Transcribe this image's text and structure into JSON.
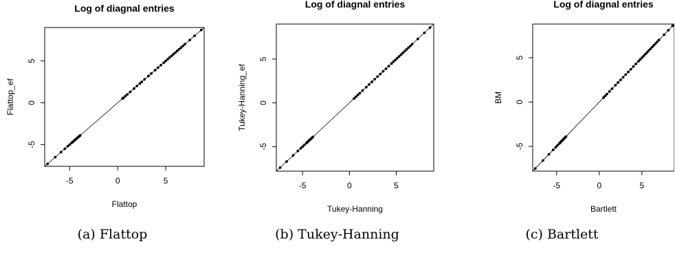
{
  "chart_data": [
    {
      "type": "scatter",
      "title": "Log of diagnal entries",
      "xlabel": "Flattop",
      "ylabel": "Flattop_ef",
      "caption": "(a) Flattop",
      "xlim": [
        -7.6,
        9.0
      ],
      "ylim": [
        -7.6,
        9.0
      ],
      "xticks": [
        -5,
        0,
        5
      ],
      "yticks": [
        -5,
        0,
        5
      ],
      "reference_line": "y = x",
      "x": [
        -7.3,
        -6.5,
        -5.9,
        -5.5,
        -5.2,
        -5.0,
        -4.8,
        -4.7,
        -4.6,
        -4.5,
        -4.4,
        -4.3,
        -4.2,
        -4.1,
        -4.0,
        -3.9,
        0.5,
        0.6,
        0.8,
        1.0,
        1.3,
        1.7,
        2.0,
        2.3,
        2.5,
        2.8,
        3.2,
        3.5,
        3.9,
        4.2,
        4.5,
        4.8,
        5.0,
        5.2,
        5.4,
        5.6,
        5.8,
        6.0,
        6.2,
        6.4,
        6.6,
        6.8,
        7.0,
        7.5,
        8.0,
        8.7
      ],
      "y": [
        -7.3,
        -6.5,
        -5.9,
        -5.5,
        -5.2,
        -5.0,
        -4.8,
        -4.7,
        -4.6,
        -4.5,
        -4.4,
        -4.3,
        -4.2,
        -4.1,
        -4.0,
        -3.9,
        0.5,
        0.6,
        0.8,
        1.0,
        1.3,
        1.7,
        2.0,
        2.3,
        2.5,
        2.8,
        3.2,
        3.5,
        3.9,
        4.2,
        4.5,
        4.8,
        5.0,
        5.2,
        5.4,
        5.6,
        5.8,
        6.0,
        6.2,
        6.4,
        6.6,
        6.8,
        7.0,
        7.5,
        8.0,
        8.7
      ]
    },
    {
      "type": "scatter",
      "title": "Log of diagnal entries",
      "xlabel": "Tukey-Hanning",
      "ylabel": "Tukey-Hanning_ef",
      "caption": "(b) Tukey-Hanning",
      "xlim": [
        -7.8,
        9.0
      ],
      "ylim": [
        -7.8,
        9.0
      ],
      "xticks": [
        -5,
        0,
        5
      ],
      "yticks": [
        -5,
        0,
        5
      ],
      "reference_line": "y = x",
      "x": [
        -7.4,
        -6.7,
        -6.0,
        -5.5,
        -5.2,
        -5.0,
        -4.8,
        -4.6,
        -4.5,
        -4.4,
        -4.3,
        -4.2,
        -4.1,
        -4.0,
        -3.9,
        0.5,
        0.7,
        0.9,
        1.1,
        1.4,
        1.8,
        2.1,
        2.4,
        2.7,
        3.0,
        3.3,
        3.6,
        3.9,
        4.2,
        4.5,
        4.7,
        4.9,
        5.1,
        5.3,
        5.5,
        5.7,
        5.9,
        6.1,
        6.3,
        6.5,
        6.7,
        7.3,
        8.0,
        8.6
      ],
      "y": [
        -7.4,
        -6.7,
        -6.0,
        -5.5,
        -5.2,
        -5.0,
        -4.8,
        -4.6,
        -4.5,
        -4.4,
        -4.3,
        -4.2,
        -4.1,
        -4.0,
        -3.9,
        0.5,
        0.7,
        0.9,
        1.1,
        1.4,
        1.8,
        2.1,
        2.4,
        2.7,
        3.0,
        3.3,
        3.6,
        3.9,
        4.2,
        4.5,
        4.7,
        4.9,
        5.1,
        5.3,
        5.5,
        5.7,
        5.9,
        6.1,
        6.3,
        6.5,
        6.7,
        7.3,
        8.0,
        8.6
      ]
    },
    {
      "type": "scatter",
      "title": "Log of diagnal entries",
      "xlabel": "Bartlett",
      "ylabel": "BM",
      "caption": "(c) Bartlett",
      "xlim": [
        -7.8,
        8.8
      ],
      "ylim": [
        -7.8,
        8.8
      ],
      "xticks": [
        -5,
        0,
        5
      ],
      "yticks": [
        -5,
        0,
        5
      ],
      "reference_line": "y = x",
      "x": [
        -7.5,
        -6.6,
        -5.9,
        -5.4,
        -5.1,
        -4.9,
        -4.7,
        -4.6,
        -4.5,
        -4.4,
        -4.3,
        -4.2,
        -4.1,
        -4.0,
        -3.9,
        0.5,
        0.7,
        0.9,
        1.2,
        1.5,
        1.9,
        2.2,
        2.5,
        2.8,
        3.1,
        3.4,
        3.7,
        4.0,
        4.3,
        4.6,
        4.8,
        5.0,
        5.2,
        5.4,
        5.6,
        5.8,
        6.0,
        6.2,
        6.4,
        6.6,
        6.8,
        7.0,
        7.6,
        8.1,
        8.6
      ],
      "y": [
        -7.5,
        -6.6,
        -5.9,
        -5.4,
        -5.1,
        -4.9,
        -4.7,
        -4.6,
        -4.5,
        -4.4,
        -4.3,
        -4.2,
        -4.1,
        -4.0,
        -3.9,
        0.5,
        0.7,
        0.9,
        1.2,
        1.5,
        1.9,
        2.2,
        2.5,
        2.8,
        3.1,
        3.4,
        3.7,
        4.0,
        4.3,
        4.6,
        4.8,
        5.0,
        5.2,
        5.4,
        5.6,
        5.8,
        6.0,
        6.2,
        6.4,
        6.6,
        6.8,
        7.0,
        7.6,
        8.1,
        8.6
      ]
    }
  ]
}
